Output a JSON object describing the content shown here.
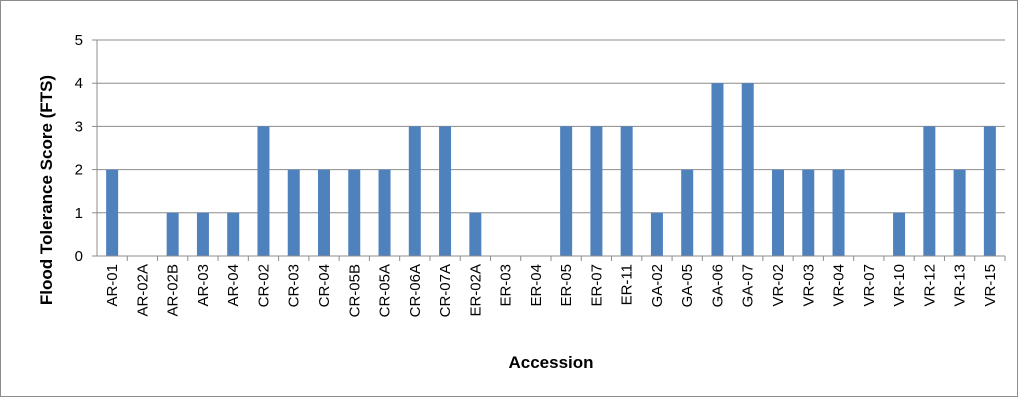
{
  "chart_data": {
    "type": "bar",
    "title": "",
    "xlabel": "Accession",
    "ylabel": "Flood Tolerance Score (FTS)",
    "ylim": [
      0,
      5
    ],
    "yticks": [
      "0",
      "1",
      "2",
      "3",
      "4",
      "5"
    ],
    "grid": true,
    "legend": "none",
    "bar_color": "#4f81bd",
    "grid_color": "#8c8c8c",
    "categories": [
      "AR-01",
      "AR-02A",
      "AR-02B",
      "AR-03",
      "AR-04",
      "CR-02",
      "CR-03",
      "CR-04",
      "CR-05B",
      "CR-05A",
      "CR-06A",
      "CR-07A",
      "ER-02A",
      "ER-03",
      "ER-04",
      "ER-05",
      "ER-07",
      "ER-11",
      "GA-02",
      "GA-05",
      "GA-06",
      "GA-07",
      "VR-02",
      "VR-03",
      "VR-04",
      "VR-07",
      "VR-10",
      "VR-12",
      "VR-13",
      "VR-15"
    ],
    "values": [
      2,
      0,
      1,
      1,
      1,
      3,
      2,
      2,
      2,
      2,
      3,
      3,
      1,
      0,
      0,
      3,
      3,
      3,
      1,
      2,
      4,
      4,
      2,
      2,
      2,
      0,
      1,
      3,
      2,
      3
    ]
  }
}
